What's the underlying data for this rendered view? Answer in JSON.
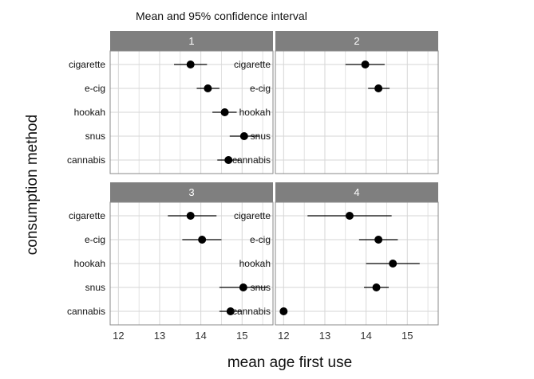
{
  "chart_data": {
    "type": "scatter",
    "title": "Mean and 95% confidence interval",
    "xlabel": "mean age first use",
    "ylabel": "consumption method",
    "categories": [
      "cigarette",
      "e-cig",
      "hookah",
      "snus",
      "cannabis"
    ],
    "xlim": [
      11.8,
      15.75
    ],
    "xticks": [
      12,
      13,
      14,
      15
    ],
    "grid": true,
    "facet_layout": "2x2",
    "panels": [
      {
        "name": "1",
        "points": [
          {
            "category": "cigarette",
            "mean": 13.75,
            "low": 13.35,
            "high": 14.15
          },
          {
            "category": "e-cig",
            "mean": 14.17,
            "low": 13.9,
            "high": 14.45
          },
          {
            "category": "hookah",
            "mean": 14.58,
            "low": 14.28,
            "high": 14.87
          },
          {
            "category": "snus",
            "mean": 15.05,
            "low": 14.7,
            "high": 15.42
          },
          {
            "category": "cannabis",
            "mean": 14.67,
            "low": 14.4,
            "high": 14.95
          }
        ]
      },
      {
        "name": "2",
        "points": [
          {
            "category": "cigarette",
            "mean": 13.98,
            "low": 13.5,
            "high": 14.45
          },
          {
            "category": "e-cig",
            "mean": 14.3,
            "low": 14.05,
            "high": 14.57
          }
        ]
      },
      {
        "name": "3",
        "points": [
          {
            "category": "cigarette",
            "mean": 13.75,
            "low": 13.2,
            "high": 14.38
          },
          {
            "category": "e-cig",
            "mean": 14.03,
            "low": 13.55,
            "high": 14.5
          },
          {
            "category": "snus",
            "mean": 15.03,
            "low": 14.45,
            "high": 15.62
          },
          {
            "category": "cannabis",
            "mean": 14.72,
            "low": 14.45,
            "high": 15.0
          }
        ]
      },
      {
        "name": "4",
        "points": [
          {
            "category": "cigarette",
            "mean": 13.6,
            "low": 12.58,
            "high": 14.62
          },
          {
            "category": "e-cig",
            "mean": 14.3,
            "low": 13.83,
            "high": 14.77
          },
          {
            "category": "hookah",
            "mean": 14.65,
            "low": 14.0,
            "high": 15.3
          },
          {
            "category": "snus",
            "mean": 14.25,
            "low": 13.95,
            "high": 14.55
          },
          {
            "category": "cannabis",
            "mean": 12.0,
            "low": 12.0,
            "high": 12.0
          }
        ]
      }
    ],
    "colors": {
      "strip": "#7f7f7f",
      "grid": "#d6d6d6",
      "point": "#000000",
      "panel_border": "#888888"
    }
  }
}
